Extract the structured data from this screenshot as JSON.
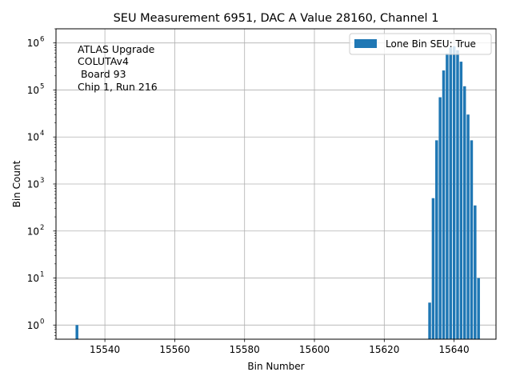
{
  "chart_data": {
    "type": "bar",
    "title": "SEU Measurement 6951, DAC A Value 28160, Channel 1",
    "xlabel": "Bin Number",
    "ylabel": "Bin Count",
    "yscale": "log",
    "xlim": [
      15526,
      15652
    ],
    "ylim": [
      0.5,
      2000000
    ],
    "xticks": [
      15540,
      15560,
      15580,
      15600,
      15620,
      15640
    ],
    "yticks": [
      1,
      10,
      100,
      1000,
      10000,
      100000,
      1000000
    ],
    "ytick_labels": [
      "10",
      "10",
      "10",
      "10",
      "10",
      "10",
      "10"
    ],
    "ytick_exponents": [
      "0",
      "1",
      "2",
      "3",
      "4",
      "5",
      "6"
    ],
    "grid": true,
    "legend_position": "top-right",
    "bar_color": "#1f77b4",
    "series": [
      {
        "name": "Lone Bin SEU: True",
        "x": [
          15532,
          15633,
          15634,
          15635,
          15636,
          15637,
          15638,
          15639,
          15640,
          15641,
          15642,
          15643,
          15644,
          15645,
          15646,
          15647
        ],
        "values": [
          1,
          3,
          500,
          8500,
          70000,
          260000,
          600000,
          800000,
          850000,
          700000,
          400000,
          120000,
          30000,
          8500,
          350,
          10
        ]
      }
    ],
    "annotation": {
      "lines": [
        "ATLAS Upgrade",
        "COLUTAv4",
        " Board 93",
        "Chip 1, Run 216"
      ]
    }
  }
}
